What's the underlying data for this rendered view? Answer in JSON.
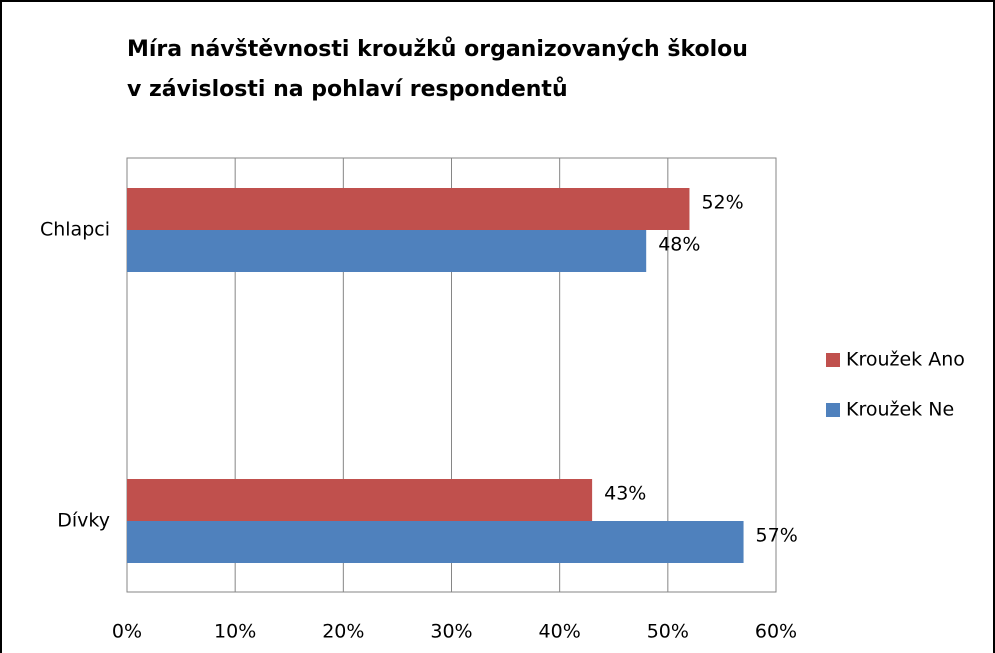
{
  "chart_data": {
    "type": "hbar",
    "title": [
      "Míra návštěvnosti kroužků organizovaných školou",
      "v závislosti  na pohlaví respondentů"
    ],
    "categories": [
      "Chlapci",
      "Dívky"
    ],
    "series": [
      {
        "name": "Kroužek Ano",
        "color": "#c0504d",
        "values": [
          52,
          43
        ],
        "value_labels": [
          "52%",
          "43%"
        ]
      },
      {
        "name": "Kroužek Ne",
        "color": "#4f81bd",
        "values": [
          48,
          57
        ],
        "value_labels": [
          "48%",
          "57%"
        ]
      }
    ],
    "xlim": [
      0,
      60
    ],
    "xticks": [
      {
        "value": 0,
        "label": "0%"
      },
      {
        "value": 10,
        "label": "10%"
      },
      {
        "value": 20,
        "label": "20%"
      },
      {
        "value": 30,
        "label": "30%"
      },
      {
        "value": 40,
        "label": "40%"
      },
      {
        "value": 50,
        "label": "50%"
      },
      {
        "value": 60,
        "label": "60%"
      }
    ],
    "grid": true,
    "legend": "right"
  }
}
